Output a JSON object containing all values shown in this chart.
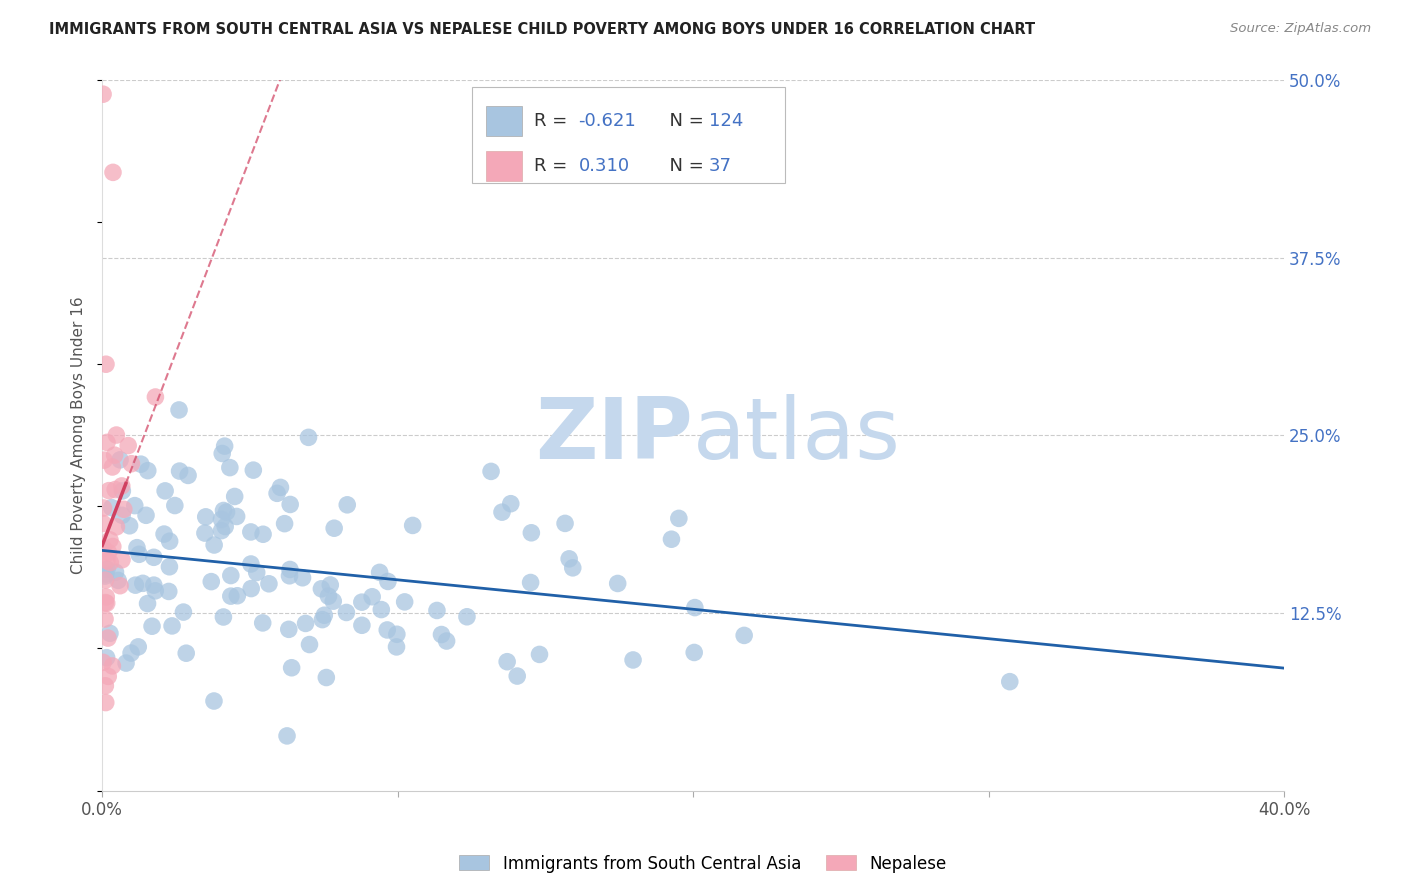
{
  "title": "IMMIGRANTS FROM SOUTH CENTRAL ASIA VS NEPALESE CHILD POVERTY AMONG BOYS UNDER 16 CORRELATION CHART",
  "source": "Source: ZipAtlas.com",
  "ylabel": "Child Poverty Among Boys Under 16",
  "x_min": 0.0,
  "x_max": 0.4,
  "y_min": 0.0,
  "y_max": 0.5,
  "blue_R": -0.621,
  "blue_N": 124,
  "pink_R": 0.31,
  "pink_N": 37,
  "blue_color": "#a8c5e0",
  "pink_color": "#f4a8b8",
  "blue_line_color": "#2060a8",
  "pink_line_color": "#d04060",
  "legend_label_blue": "Immigrants from South Central Asia",
  "legend_label_pink": "Nepalese",
  "watermark_zip": "ZIP",
  "watermark_atlas": "atlas",
  "watermark_color": "#c5d8ed",
  "background_color": "#ffffff",
  "grid_color": "#cccccc",
  "label_color_black": "#333333",
  "label_color_blue": "#4472c4",
  "right_ytick_color": "#4472c4"
}
